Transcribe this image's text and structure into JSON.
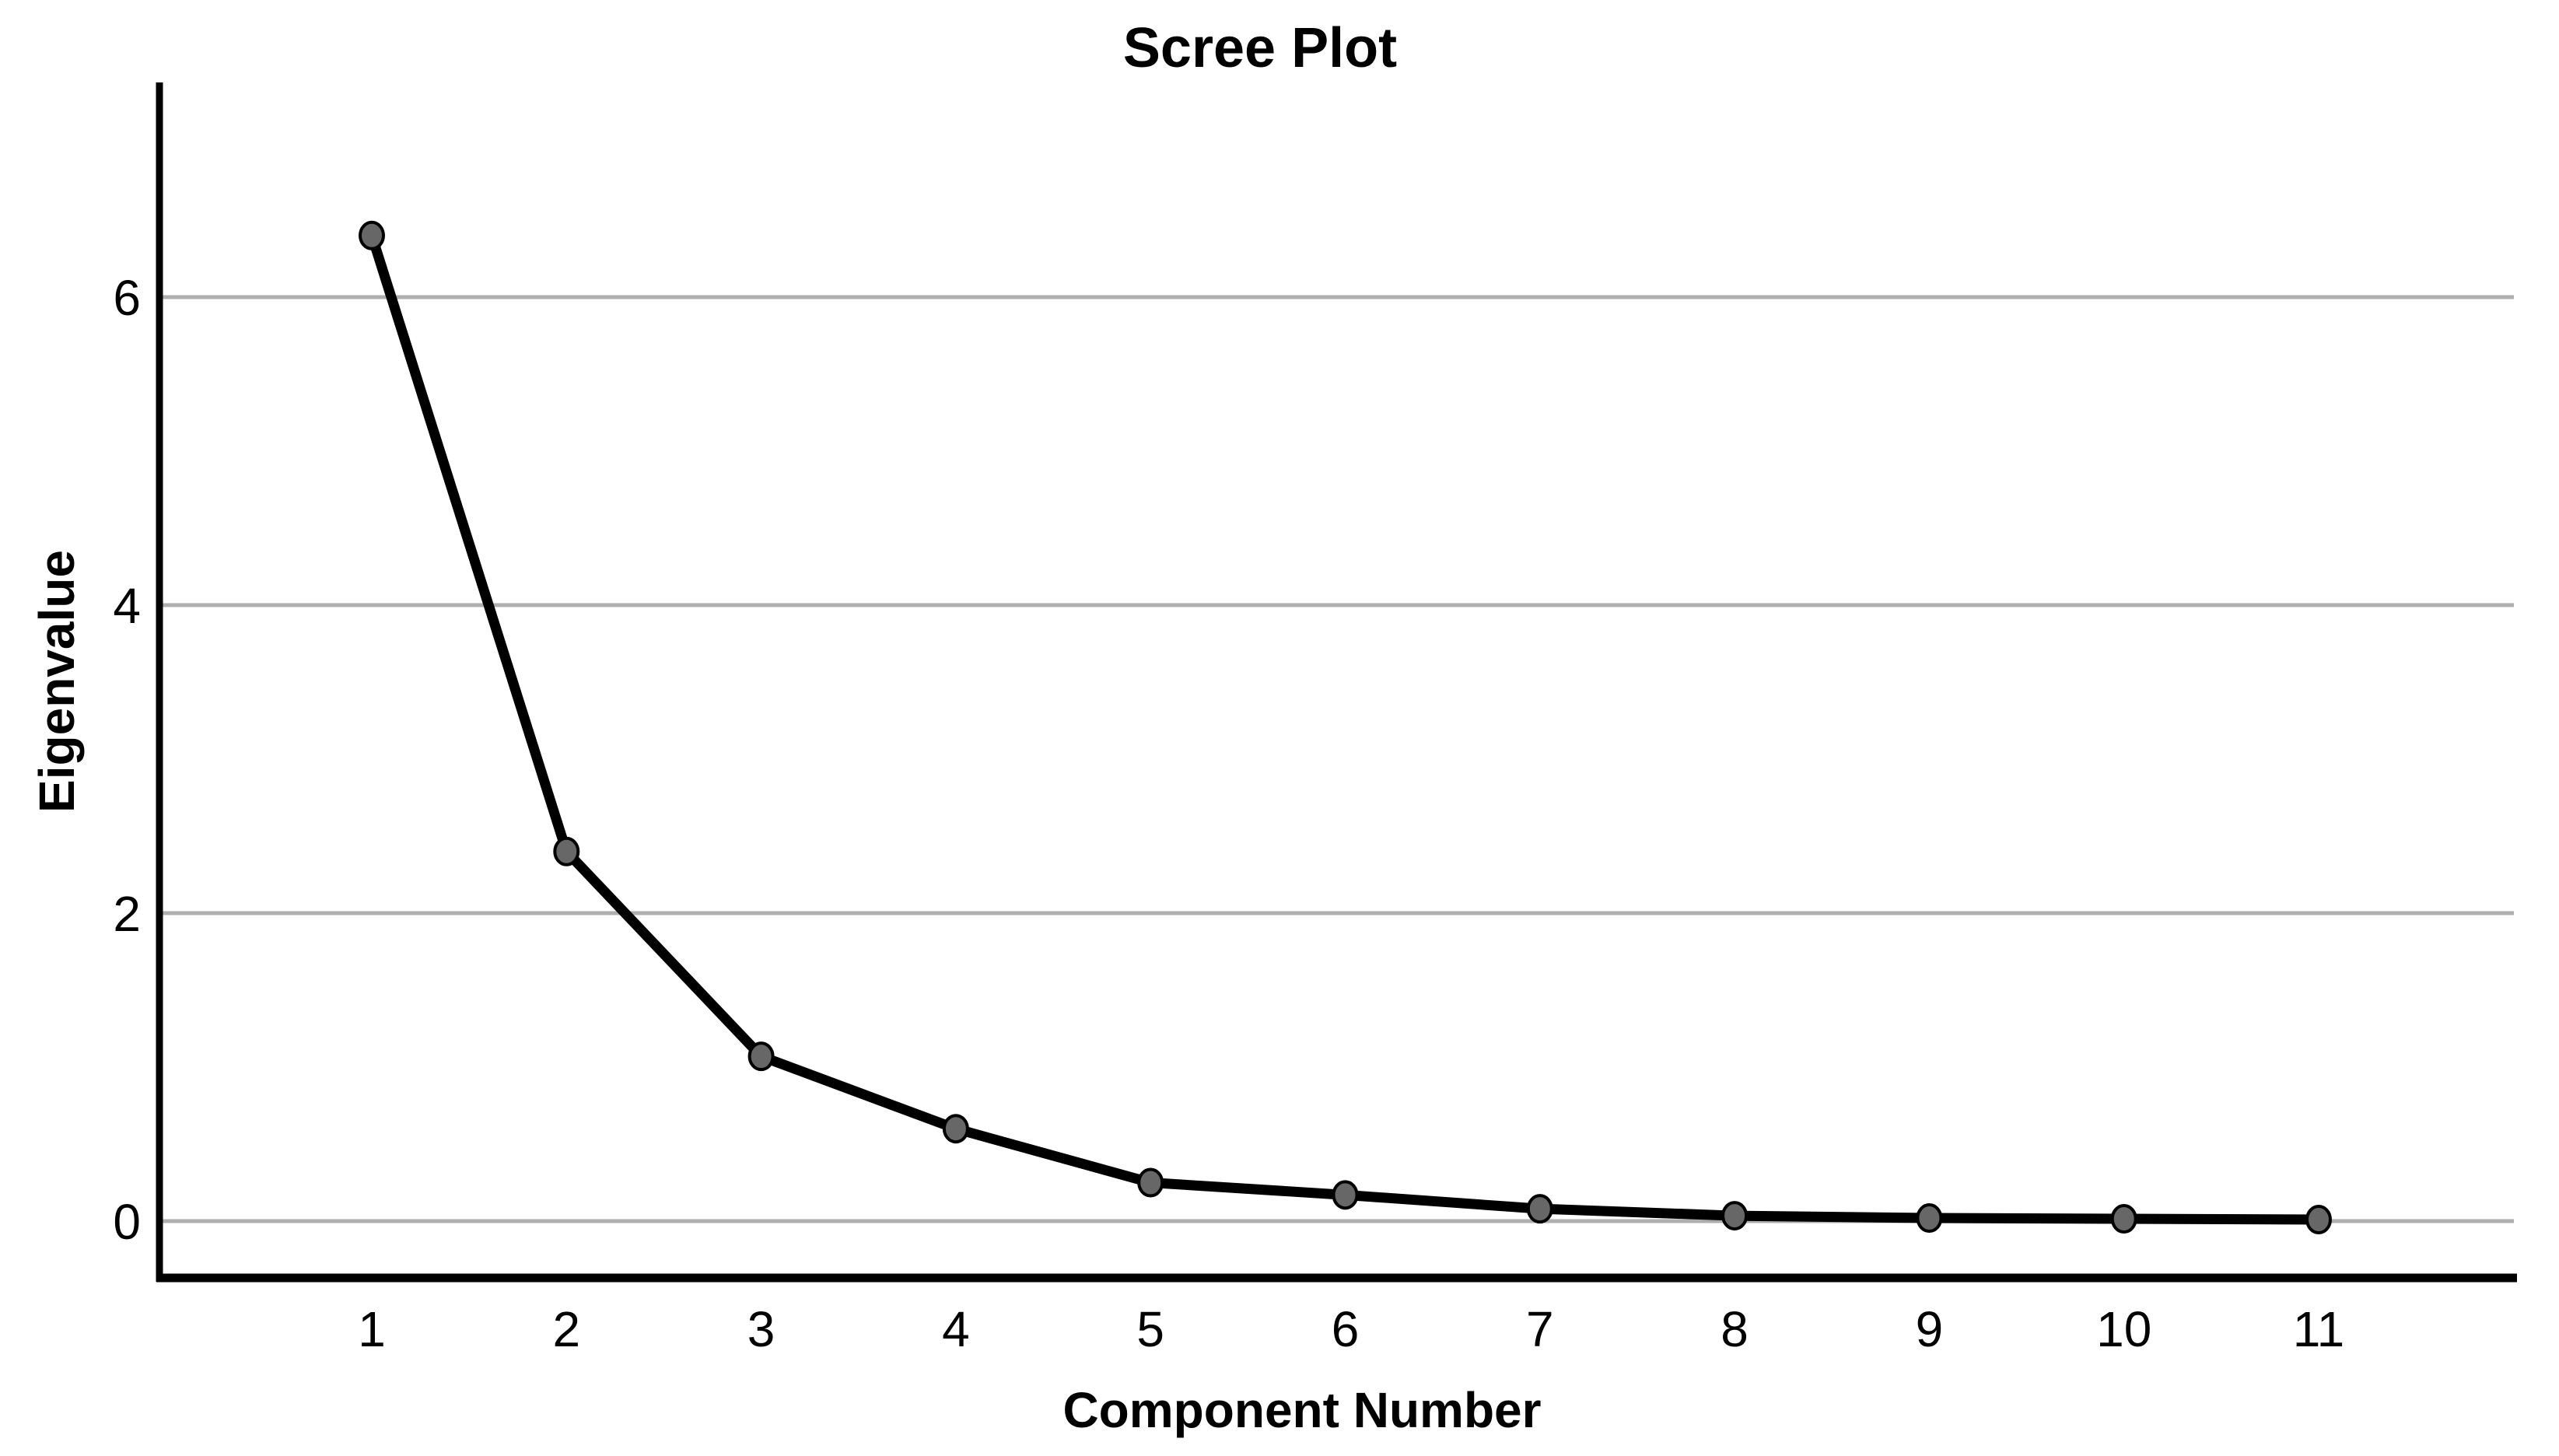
{
  "chart": {
    "background": "#ffffff"
  },
  "chart_data": {
    "type": "line",
    "title": "Scree Plot",
    "xlabel": "Component Number",
    "ylabel": "Eigenvalue",
    "categories": [
      "1",
      "2",
      "3",
      "4",
      "5",
      "6",
      "7",
      "8",
      "9",
      "10",
      "11"
    ],
    "series": [
      {
        "name": "Eigenvalue",
        "values": [
          6.4,
          2.4,
          1.07,
          0.6,
          0.25,
          0.17,
          0.08,
          0.035,
          0.02,
          0.015,
          0.01
        ]
      }
    ],
    "y_ticks": [
      0,
      2,
      4,
      6
    ],
    "ylim": [
      -0.38,
      7.4
    ],
    "xlim_categories": [
      1,
      11
    ],
    "grid": "horizontal-only",
    "legend": "none",
    "colors": {
      "line": "#000000",
      "marker_fill": "#676767",
      "marker_stroke": "#000000",
      "grid": "#aeaeae",
      "axis": "#000000",
      "text": "#000000"
    }
  }
}
